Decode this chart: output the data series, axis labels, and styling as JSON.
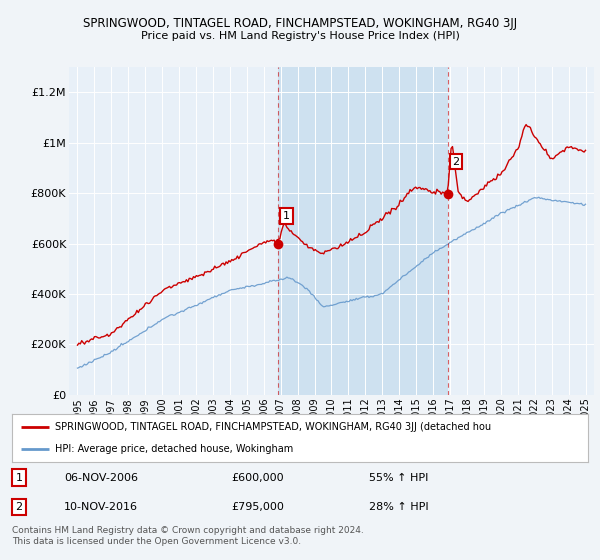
{
  "title": "SPRINGWOOD, TINTAGEL ROAD, FINCHAMPSTEAD, WOKINGHAM, RG40 3JJ",
  "subtitle": "Price paid vs. HM Land Registry's House Price Index (HPI)",
  "bg_color": "#f0f4f8",
  "plot_bg_color": "#e8f0f8",
  "shade_color": "#cce0f0",
  "grid_color": "#ffffff",
  "red_line_color": "#cc0000",
  "blue_line_color": "#6699cc",
  "sale1_x": 2006.85,
  "sale1_y": 600000,
  "sale2_x": 2016.85,
  "sale2_y": 795000,
  "ylim": [
    0,
    1300000
  ],
  "xlim": [
    1994.5,
    2025.5
  ],
  "yticks": [
    0,
    200000,
    400000,
    600000,
    800000,
    1000000,
    1200000
  ],
  "ytick_labels": [
    "£0",
    "£200K",
    "£400K",
    "£600K",
    "£800K",
    "£1M",
    "£1.2M"
  ],
  "xticks": [
    1995,
    1996,
    1997,
    1998,
    1999,
    2000,
    2001,
    2002,
    2003,
    2004,
    2005,
    2006,
    2007,
    2008,
    2009,
    2010,
    2011,
    2012,
    2013,
    2014,
    2015,
    2016,
    2017,
    2018,
    2019,
    2020,
    2021,
    2022,
    2023,
    2024,
    2025
  ],
  "legend_label_red": "SPRINGWOOD, TINTAGEL ROAD, FINCHAMPSTEAD, WOKINGHAM, RG40 3JJ (detached hou",
  "legend_label_blue": "HPI: Average price, detached house, Wokingham",
  "annotation1_date": "06-NOV-2006",
  "annotation1_price": "£600,000",
  "annotation1_hpi": "55% ↑ HPI",
  "annotation2_date": "10-NOV-2016",
  "annotation2_price": "£795,000",
  "annotation2_hpi": "28% ↑ HPI",
  "footer": "Contains HM Land Registry data © Crown copyright and database right 2024.\nThis data is licensed under the Open Government Licence v3.0."
}
